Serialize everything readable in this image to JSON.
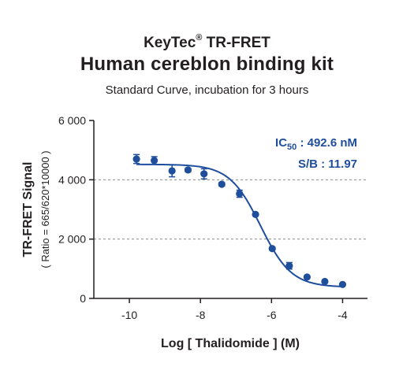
{
  "brand": {
    "name": "KeyTec",
    "reg": "®",
    "product": " TR-FRET"
  },
  "chart_data": {
    "type": "scatter",
    "title": "Human cereblon binding kit",
    "subtitle": "Standard Curve, incubation for 3 hours",
    "xlabel": "Log [ Thalidomide ]  (M)",
    "ylabel": "TR-FRET Signal",
    "ylabel_sub": "( Ratio = 665/620*10000 )",
    "xlim": [
      -11,
      -3.3
    ],
    "ylim": [
      0,
      6000
    ],
    "xticks": [
      -10,
      -8,
      -6,
      -4
    ],
    "xtick_labels": [
      "-10",
      "-8",
      "-6",
      "-4"
    ],
    "yticks": [
      0,
      2000,
      4000,
      6000
    ],
    "ytick_labels": [
      "0",
      "2 000",
      "4 000",
      "6 000"
    ],
    "grid": {
      "y_dashed_at": [
        2000,
        4000
      ]
    },
    "color": "#1f4e9c",
    "points": [
      {
        "x": -9.8,
        "y": 4700,
        "err": 150
      },
      {
        "x": -9.3,
        "y": 4650,
        "err": 130
      },
      {
        "x": -8.8,
        "y": 4300,
        "err": 200
      },
      {
        "x": -8.35,
        "y": 4330,
        "err": 60
      },
      {
        "x": -7.9,
        "y": 4200,
        "err": 170
      },
      {
        "x": -7.4,
        "y": 3850,
        "err": 60
      },
      {
        "x": -6.9,
        "y": 3530,
        "err": 120
      },
      {
        "x": -6.45,
        "y": 2830,
        "err": 40
      },
      {
        "x": -5.98,
        "y": 1680,
        "err": 50
      },
      {
        "x": -5.5,
        "y": 1100,
        "err": 110
      },
      {
        "x": -5.0,
        "y": 720,
        "err": 40
      },
      {
        "x": -4.5,
        "y": 570,
        "err": 30
      },
      {
        "x": -4.0,
        "y": 470,
        "err": 30
      }
    ],
    "fit": {
      "model": "four-parameter logistic",
      "top": 4520,
      "bottom": 380,
      "log_ic50": -6.31,
      "hill": 1.0,
      "x_range": [
        -9.8,
        -4.0
      ]
    },
    "annotations": [
      {
        "prefix": "IC",
        "sub": "50",
        "text": " : 492.6 nM"
      },
      {
        "prefix": "S/B : 11.97"
      }
    ]
  }
}
